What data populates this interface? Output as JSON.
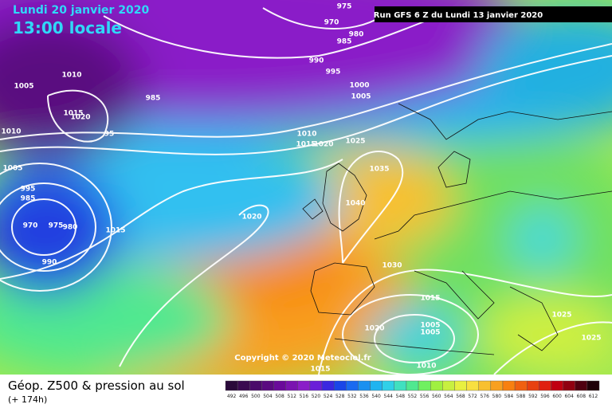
{
  "header": {
    "date": "Lundi 20 janvier 2020",
    "time": "13:00 locale",
    "run": "Run GFS 6 Z du Lundi 13 janvier 2020"
  },
  "map": {
    "isobar_labels": [
      975,
      970,
      980,
      985,
      990,
      995,
      1000,
      1005,
      1005,
      1010,
      985,
      1015,
      1020,
      1010,
      95,
      1005,
      995,
      985,
      1010,
      1015,
      1020,
      1025,
      1035,
      1040,
      1020,
      970,
      975,
      980,
      1015,
      990,
      1030,
      1015,
      1005,
      1005,
      1020,
      1010,
      1015,
      1025,
      1025
    ],
    "copyright": "Copyright © 2020 Meteociel.fr"
  },
  "footer": {
    "title": "Géop. Z500 & pression au sol",
    "lead_time": "(+ 174h)"
  },
  "legend": {
    "items": [
      {
        "label": 492,
        "color": "#2a0a3a"
      },
      {
        "label": 496,
        "color": "#3a0a50"
      },
      {
        "label": 500,
        "color": "#4a0a6a"
      },
      {
        "label": 504,
        "color": "#5a0a80"
      },
      {
        "label": 508,
        "color": "#6a0a9a"
      },
      {
        "label": 512,
        "color": "#7a14b0"
      },
      {
        "label": 516,
        "color": "#8a1ec8"
      },
      {
        "label": 520,
        "color": "#6a1ed8"
      },
      {
        "label": 524,
        "color": "#3a28e0"
      },
      {
        "label": 528,
        "color": "#1a46e8"
      },
      {
        "label": 532,
        "color": "#1a6af0"
      },
      {
        "label": 536,
        "color": "#1a90f0"
      },
      {
        "label": 540,
        "color": "#20b4f0"
      },
      {
        "label": 544,
        "color": "#30d0e8"
      },
      {
        "label": 548,
        "color": "#40e0c0"
      },
      {
        "label": 552,
        "color": "#50e890"
      },
      {
        "label": 556,
        "color": "#70f060"
      },
      {
        "label": 560,
        "color": "#a0f040"
      },
      {
        "label": 564,
        "color": "#c8f040"
      },
      {
        "label": 568,
        "color": "#e8f040"
      },
      {
        "label": 572,
        "color": "#f8e040"
      },
      {
        "label": 576,
        "color": "#f8c030"
      },
      {
        "label": 580,
        "color": "#f8a020"
      },
      {
        "label": 584,
        "color": "#f88010"
      },
      {
        "label": 588,
        "color": "#f06010"
      },
      {
        "label": 592,
        "color": "#e84010"
      },
      {
        "label": 596,
        "color": "#e02010"
      },
      {
        "label": 600,
        "color": "#c00010"
      },
      {
        "label": 604,
        "color": "#900010"
      },
      {
        "label": 608,
        "color": "#500010"
      },
      {
        "label": 612,
        "color": "#200008"
      }
    ]
  }
}
